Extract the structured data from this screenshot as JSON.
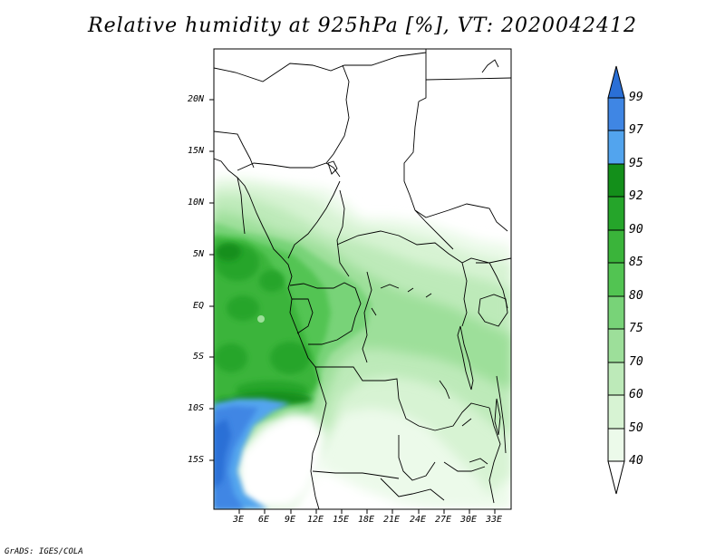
{
  "title": "Relative humidity at 925hPa [%], VT: 2020042412",
  "credit": "GrADS: IGES/COLA",
  "map": {
    "lat_ticks": [
      "20N",
      "15N",
      "10N",
      "5N",
      "EQ",
      "5S",
      "10S",
      "15S"
    ],
    "lon_ticks": [
      "3E",
      "6E",
      "9E",
      "12E",
      "15E",
      "18E",
      "21E",
      "24E",
      "27E",
      "30E",
      "33E"
    ]
  },
  "colorbar": {
    "levels": [
      "99",
      "97",
      "95",
      "92",
      "90",
      "85",
      "80",
      "75",
      "70",
      "60",
      "50",
      "40"
    ],
    "colors": {
      "above_99": "#2a6fd6",
      "97_99": "#3f86e4",
      "95_97": "#52a4ee",
      "92_95": "#138f1a",
      "90_92": "#25a52a",
      "85_90": "#3ab43a",
      "80_85": "#52c452",
      "75_80": "#78d378",
      "70_75": "#9ddf9a",
      "60_70": "#bdeab9",
      "50_60": "#d7f3d3",
      "40_50": "#ecfaea",
      "below_40": "#ffffff"
    }
  }
}
